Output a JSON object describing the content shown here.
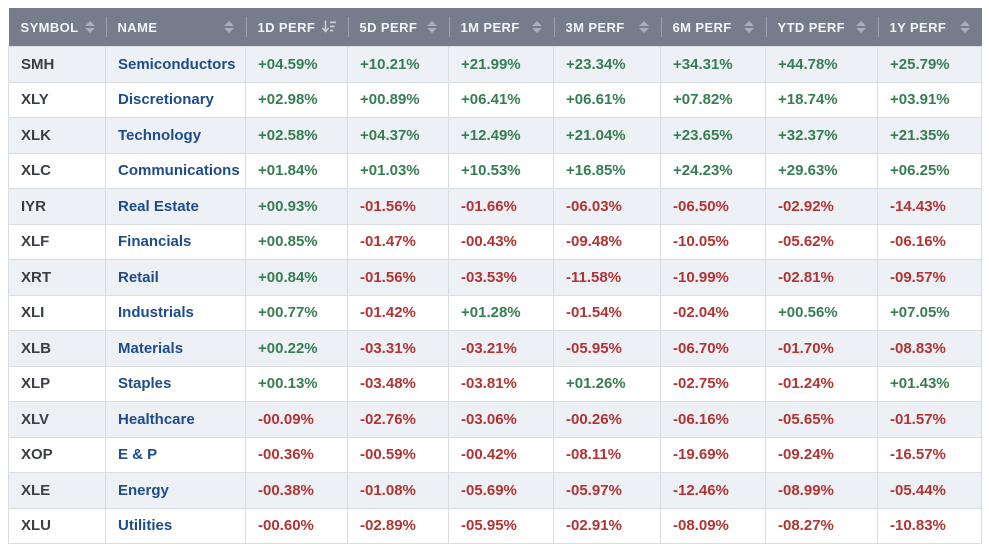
{
  "colors": {
    "positive": "#377d52",
    "negative": "#b23331",
    "header_bg": "#757d8c",
    "header_text": "#f2f4f6",
    "link": "#1e4c8a",
    "row_alt_bg": "#edf1f6"
  },
  "table": {
    "columns": [
      {
        "key": "symbol",
        "label": "SYMBOL",
        "sort": "sortable"
      },
      {
        "key": "name",
        "label": "NAME",
        "sort": "sortable"
      },
      {
        "key": "1d",
        "label": "1D PERF",
        "sort": "desc"
      },
      {
        "key": "5d",
        "label": "5D PERF",
        "sort": "sortable"
      },
      {
        "key": "1m",
        "label": "1M PERF",
        "sort": "sortable"
      },
      {
        "key": "3m",
        "label": "3M PERF",
        "sort": "sortable"
      },
      {
        "key": "6m",
        "label": "6M PERF",
        "sort": "sortable"
      },
      {
        "key": "ytd",
        "label": "YTD PERF",
        "sort": "sortable"
      },
      {
        "key": "1y",
        "label": "1Y PERF",
        "sort": "sortable"
      }
    ],
    "rows": [
      {
        "symbol": "SMH",
        "name": "Semiconductors",
        "perf": [
          "+04.59%",
          "+10.21%",
          "+21.99%",
          "+23.34%",
          "+34.31%",
          "+44.78%",
          "+25.79%"
        ]
      },
      {
        "symbol": "XLY",
        "name": "Discretionary",
        "perf": [
          "+02.98%",
          "+00.89%",
          "+06.41%",
          "+06.61%",
          "+07.82%",
          "+18.74%",
          "+03.91%"
        ]
      },
      {
        "symbol": "XLK",
        "name": "Technology",
        "perf": [
          "+02.58%",
          "+04.37%",
          "+12.49%",
          "+21.04%",
          "+23.65%",
          "+32.37%",
          "+21.35%"
        ]
      },
      {
        "symbol": "XLC",
        "name": "Communications",
        "perf": [
          "+01.84%",
          "+01.03%",
          "+10.53%",
          "+16.85%",
          "+24.23%",
          "+29.63%",
          "+06.25%"
        ]
      },
      {
        "symbol": "IYR",
        "name": "Real Estate",
        "perf": [
          "+00.93%",
          "-01.56%",
          "-01.66%",
          "-06.03%",
          "-06.50%",
          "-02.92%",
          "-14.43%"
        ]
      },
      {
        "symbol": "XLF",
        "name": "Financials",
        "perf": [
          "+00.85%",
          "-01.47%",
          "-00.43%",
          "-09.48%",
          "-10.05%",
          "-05.62%",
          "-06.16%"
        ]
      },
      {
        "symbol": "XRT",
        "name": "Retail",
        "perf": [
          "+00.84%",
          "-01.56%",
          "-03.53%",
          "-11.58%",
          "-10.99%",
          "-02.81%",
          "-09.57%"
        ]
      },
      {
        "symbol": "XLI",
        "name": "Industrials",
        "perf": [
          "+00.77%",
          "-01.42%",
          "+01.28%",
          "-01.54%",
          "-02.04%",
          "+00.56%",
          "+07.05%"
        ]
      },
      {
        "symbol": "XLB",
        "name": "Materials",
        "perf": [
          "+00.22%",
          "-03.31%",
          "-03.21%",
          "-05.95%",
          "-06.70%",
          "-01.70%",
          "-08.83%"
        ]
      },
      {
        "symbol": "XLP",
        "name": "Staples",
        "perf": [
          "+00.13%",
          "-03.48%",
          "-03.81%",
          "+01.26%",
          "-02.75%",
          "-01.24%",
          "+01.43%"
        ]
      },
      {
        "symbol": "XLV",
        "name": "Healthcare",
        "perf": [
          "-00.09%",
          "-02.76%",
          "-03.06%",
          "-00.26%",
          "-06.16%",
          "-05.65%",
          "-01.57%"
        ]
      },
      {
        "symbol": "XOP",
        "name": "E & P",
        "perf": [
          "-00.36%",
          "-00.59%",
          "-00.42%",
          "-08.11%",
          "-19.69%",
          "-09.24%",
          "-16.57%"
        ]
      },
      {
        "symbol": "XLE",
        "name": "Energy",
        "perf": [
          "-00.38%",
          "-01.08%",
          "-05.69%",
          "-05.97%",
          "-12.46%",
          "-08.99%",
          "-05.44%"
        ]
      },
      {
        "symbol": "XLU",
        "name": "Utilities",
        "perf": [
          "-00.60%",
          "-02.89%",
          "-05.95%",
          "-02.91%",
          "-08.09%",
          "-08.27%",
          "-10.83%"
        ]
      }
    ]
  }
}
